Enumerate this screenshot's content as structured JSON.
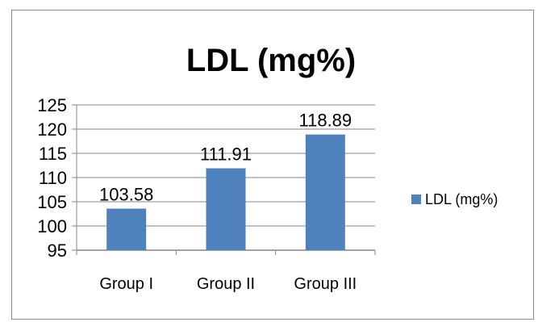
{
  "chart_data": {
    "type": "bar",
    "title": "LDL (mg%)",
    "categories": [
      "Group I",
      "Group II",
      "Group III"
    ],
    "series": [
      {
        "name": "LDL (mg%)",
        "values": [
          103.58,
          111.91,
          118.89
        ],
        "color": "#4f81bd"
      }
    ],
    "data_labels": [
      "103.58",
      "111.91",
      "118.89"
    ],
    "ylim": [
      95,
      125
    ],
    "yticks": [
      95,
      100,
      105,
      110,
      115,
      120,
      125
    ],
    "grid": "horizontal",
    "legend_position": "right",
    "xlabel": "",
    "ylabel": ""
  }
}
